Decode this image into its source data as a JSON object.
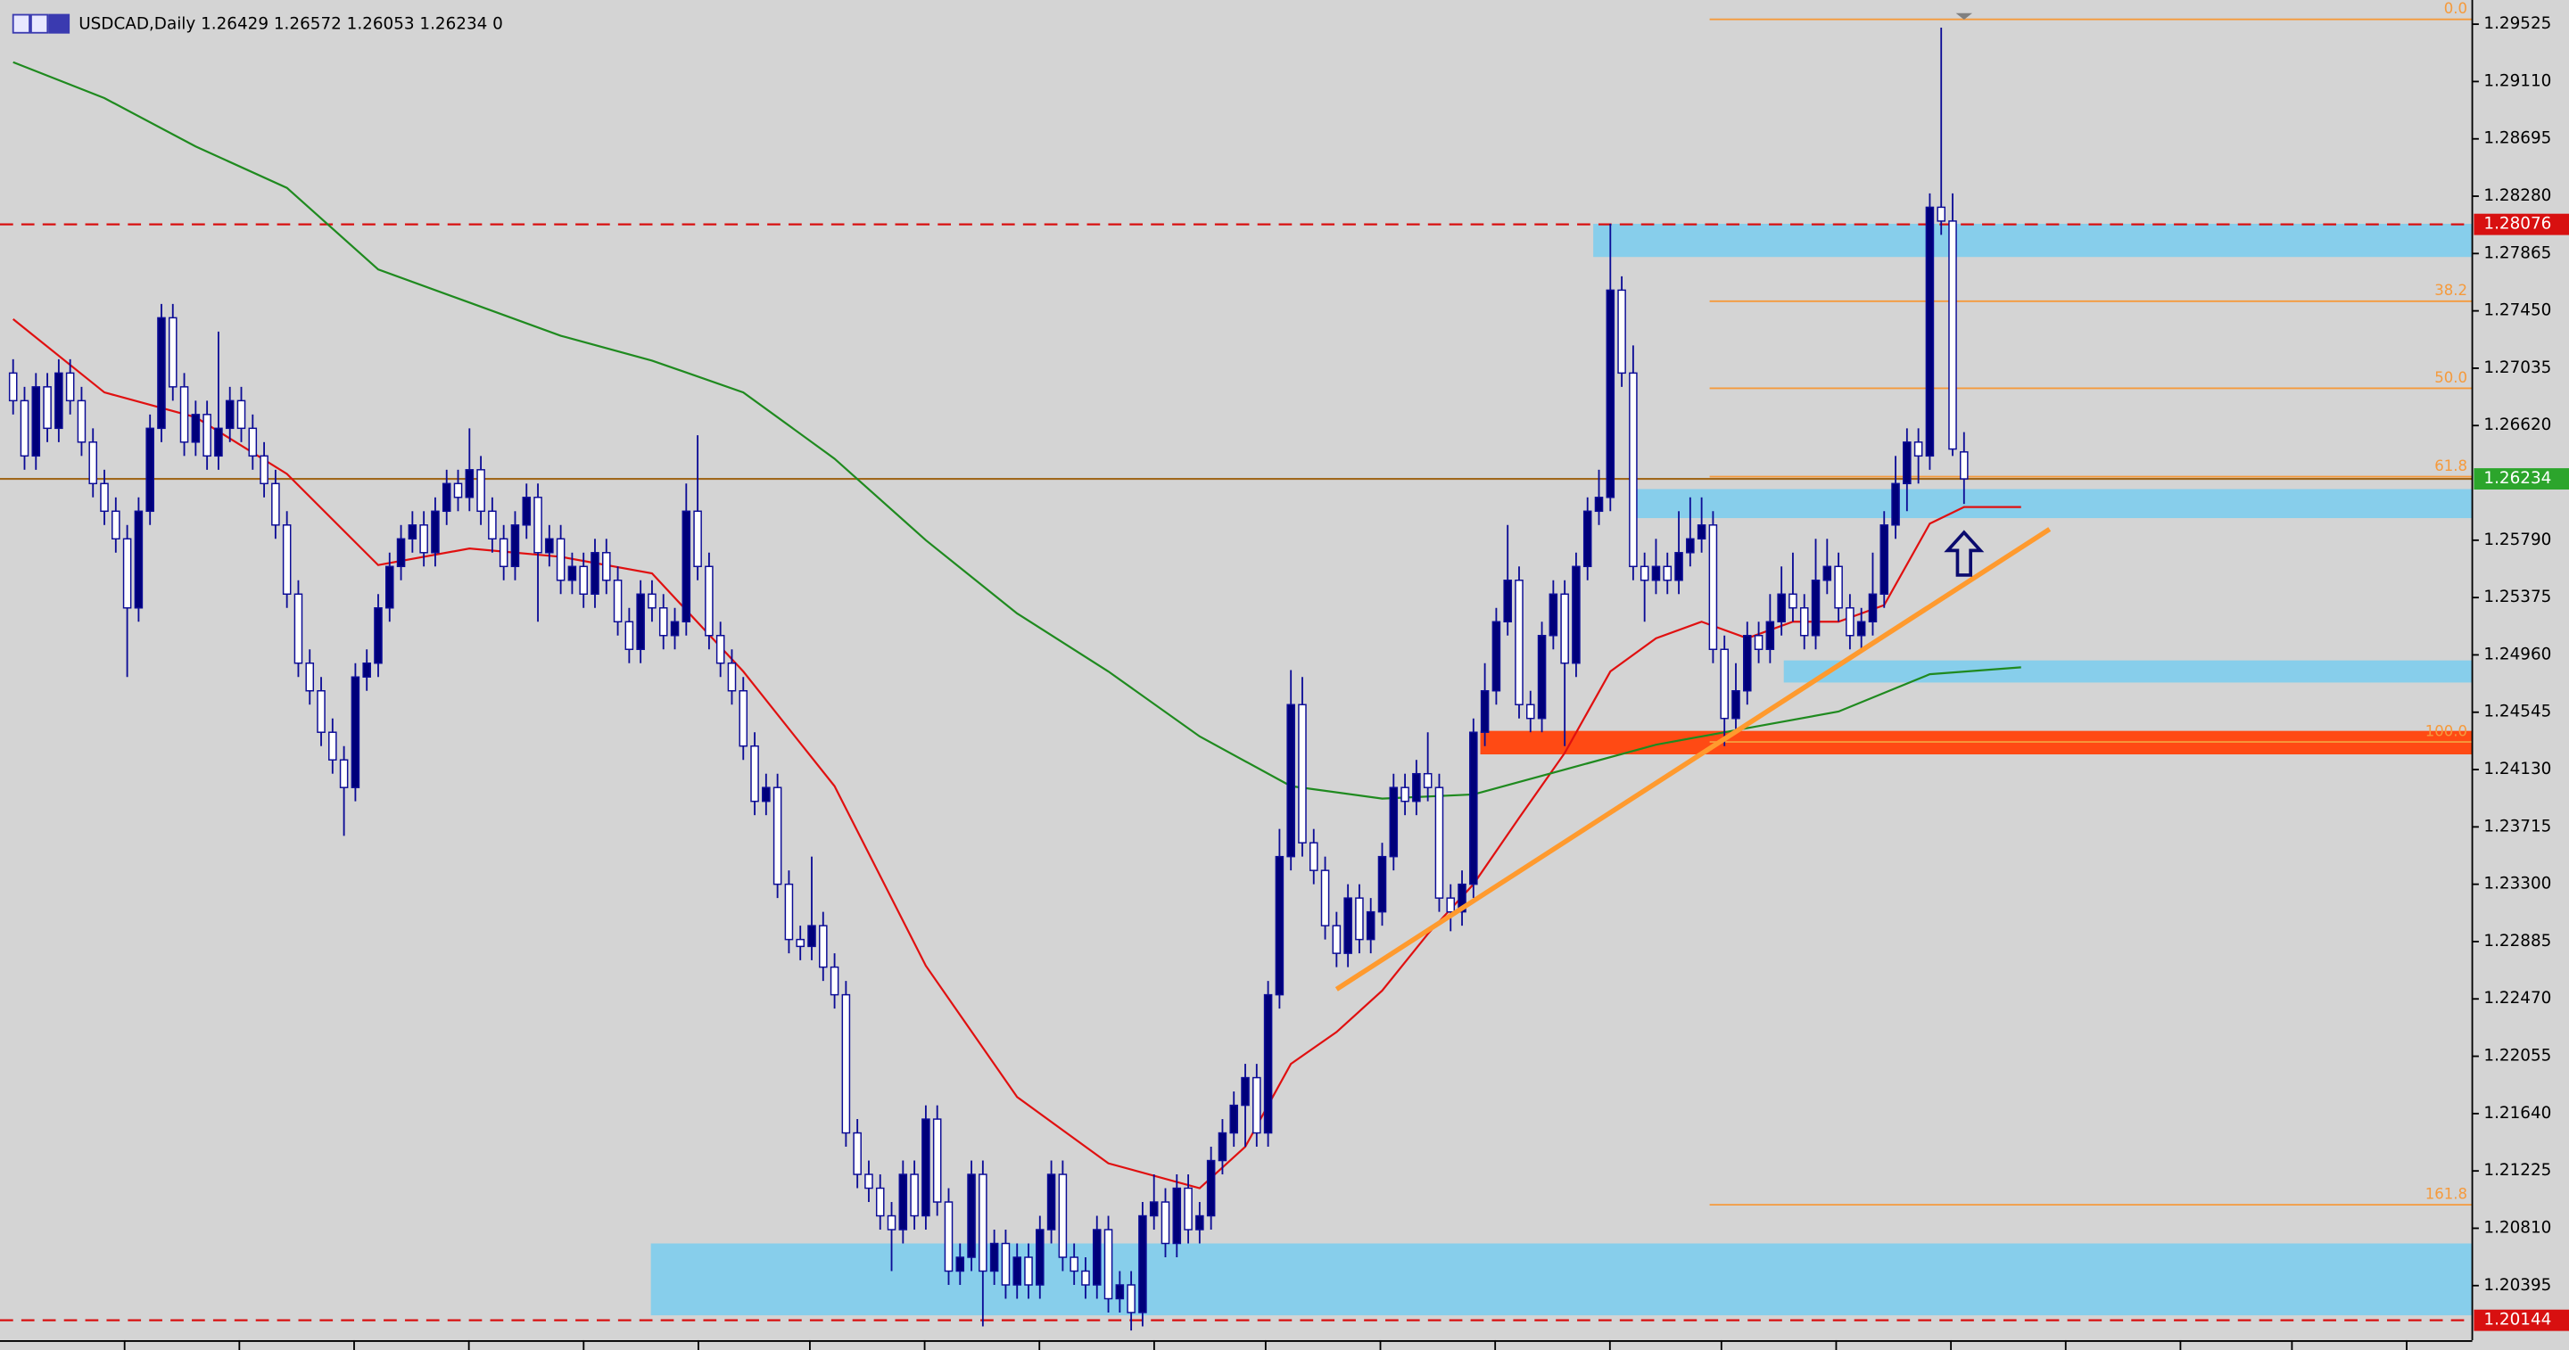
{
  "chart_data": {
    "type": "candlestick",
    "title": "USDCAD,Daily  1.26429 1.26572 1.26053 1.26234  0",
    "ylim": [
      1.2,
      1.297
    ],
    "yticks": [
      1.29525,
      {
        "value": 1.2911,
        "label": "1.29110"
      },
      1.28695,
      {
        "value": 1.2828,
        "label": "1.28280"
      },
      1.27865,
      {
        "value": 1.2745,
        "label": "1.27450"
      },
      1.27035,
      {
        "value": 1.2662,
        "label": "1.26620"
      },
      {
        "value": 1.2579,
        "label": "1.25790"
      },
      1.25375,
      {
        "value": 1.2496,
        "label": "1.24960"
      },
      1.24545,
      {
        "value": 1.2413,
        "label": "1.24130"
      },
      1.23715,
      {
        "value": 1.233,
        "label": "1.23300"
      },
      1.22885,
      {
        "value": 1.2247,
        "label": "1.22470"
      },
      1.22055,
      {
        "value": 1.2164,
        "label": "1.21640"
      },
      1.21225,
      {
        "value": 1.2081,
        "label": "1.20810"
      },
      1.20395
    ],
    "bull_color": "#00007a",
    "bear_color": "#ffffff",
    "wick_color": "#0c0c96",
    "ohlc": [
      [
        1.27,
        1.271,
        1.267,
        1.268
      ],
      [
        1.268,
        1.269,
        1.263,
        1.264
      ],
      [
        1.264,
        1.27,
        1.263,
        1.269
      ],
      [
        1.269,
        1.27,
        1.265,
        1.266
      ],
      [
        1.266,
        1.271,
        1.265,
        1.27
      ],
      [
        1.27,
        1.271,
        1.267,
        1.268
      ],
      [
        1.268,
        1.269,
        1.264,
        1.265
      ],
      [
        1.265,
        1.266,
        1.261,
        1.262
      ],
      [
        1.262,
        1.263,
        1.259,
        1.26
      ],
      [
        1.26,
        1.261,
        1.257,
        1.258
      ],
      [
        1.258,
        1.259,
        1.248,
        1.253
      ],
      [
        1.253,
        1.261,
        1.252,
        1.26
      ],
      [
        1.26,
        1.267,
        1.259,
        1.266
      ],
      [
        1.266,
        1.275,
        1.265,
        1.274
      ],
      [
        1.274,
        1.275,
        1.268,
        1.269
      ],
      [
        1.269,
        1.27,
        1.264,
        1.265
      ],
      [
        1.265,
        1.268,
        1.264,
        1.267
      ],
      [
        1.267,
        1.268,
        1.263,
        1.264
      ],
      [
        1.264,
        1.273,
        1.263,
        1.266
      ],
      [
        1.266,
        1.269,
        1.265,
        1.268
      ],
      [
        1.268,
        1.269,
        1.265,
        1.266
      ],
      [
        1.266,
        1.267,
        1.263,
        1.264
      ],
      [
        1.264,
        1.265,
        1.261,
        1.262
      ],
      [
        1.262,
        1.263,
        1.258,
        1.259
      ],
      [
        1.259,
        1.26,
        1.253,
        1.254
      ],
      [
        1.254,
        1.255,
        1.248,
        1.249
      ],
      [
        1.249,
        1.25,
        1.246,
        1.247
      ],
      [
        1.247,
        1.248,
        1.243,
        1.244
      ],
      [
        1.244,
        1.245,
        1.241,
        1.242
      ],
      [
        1.242,
        1.243,
        1.2365,
        1.24
      ],
      [
        1.24,
        1.249,
        1.239,
        1.248
      ],
      [
        1.248,
        1.25,
        1.247,
        1.249
      ],
      [
        1.249,
        1.254,
        1.248,
        1.253
      ],
      [
        1.253,
        1.257,
        1.252,
        1.256
      ],
      [
        1.256,
        1.259,
        1.255,
        1.258
      ],
      [
        1.258,
        1.26,
        1.257,
        1.259
      ],
      [
        1.259,
        1.26,
        1.256,
        1.257
      ],
      [
        1.257,
        1.261,
        1.256,
        1.26
      ],
      [
        1.26,
        1.263,
        1.259,
        1.262
      ],
      [
        1.262,
        1.263,
        1.26,
        1.261
      ],
      [
        1.261,
        1.266,
        1.26,
        1.263
      ],
      [
        1.263,
        1.264,
        1.259,
        1.26
      ],
      [
        1.26,
        1.261,
        1.257,
        1.258
      ],
      [
        1.258,
        1.259,
        1.255,
        1.256
      ],
      [
        1.256,
        1.26,
        1.255,
        1.259
      ],
      [
        1.259,
        1.262,
        1.258,
        1.261
      ],
      [
        1.261,
        1.262,
        1.252,
        1.257
      ],
      [
        1.257,
        1.259,
        1.256,
        1.258
      ],
      [
        1.258,
        1.259,
        1.254,
        1.255
      ],
      [
        1.255,
        1.257,
        1.254,
        1.256
      ],
      [
        1.256,
        1.257,
        1.253,
        1.254
      ],
      [
        1.254,
        1.258,
        1.253,
        1.257
      ],
      [
        1.257,
        1.258,
        1.254,
        1.255
      ],
      [
        1.255,
        1.256,
        1.251,
        1.252
      ],
      [
        1.252,
        1.253,
        1.249,
        1.25
      ],
      [
        1.25,
        1.255,
        1.249,
        1.254
      ],
      [
        1.254,
        1.255,
        1.252,
        1.253
      ],
      [
        1.253,
        1.254,
        1.25,
        1.251
      ],
      [
        1.251,
        1.253,
        1.25,
        1.252
      ],
      [
        1.252,
        1.262,
        1.251,
        1.26
      ],
      [
        1.26,
        1.2655,
        1.255,
        1.256
      ],
      [
        1.256,
        1.257,
        1.25,
        1.251
      ],
      [
        1.251,
        1.252,
        1.248,
        1.249
      ],
      [
        1.249,
        1.25,
        1.246,
        1.247
      ],
      [
        1.247,
        1.248,
        1.242,
        1.243
      ],
      [
        1.243,
        1.244,
        1.238,
        1.239
      ],
      [
        1.239,
        1.241,
        1.238,
        1.24
      ],
      [
        1.24,
        1.241,
        1.232,
        1.233
      ],
      [
        1.233,
        1.234,
        1.228,
        1.229
      ],
      [
        1.229,
        1.23,
        1.2275,
        1.2285
      ],
      [
        1.2285,
        1.235,
        1.2275,
        1.23
      ],
      [
        1.23,
        1.231,
        1.226,
        1.227
      ],
      [
        1.227,
        1.228,
        1.224,
        1.225
      ],
      [
        1.225,
        1.226,
        1.214,
        1.215
      ],
      [
        1.215,
        1.216,
        1.211,
        1.212
      ],
      [
        1.212,
        1.213,
        1.21,
        1.211
      ],
      [
        1.211,
        1.212,
        1.208,
        1.209
      ],
      [
        1.209,
        1.21,
        1.205,
        1.208
      ],
      [
        1.208,
        1.213,
        1.207,
        1.212
      ],
      [
        1.212,
        1.213,
        1.208,
        1.209
      ],
      [
        1.209,
        1.217,
        1.208,
        1.216
      ],
      [
        1.216,
        1.217,
        1.209,
        1.21
      ],
      [
        1.21,
        1.211,
        1.204,
        1.205
      ],
      [
        1.205,
        1.207,
        1.204,
        1.206
      ],
      [
        1.206,
        1.213,
        1.205,
        1.212
      ],
      [
        1.212,
        1.213,
        1.201,
        1.205
      ],
      [
        1.205,
        1.208,
        1.204,
        1.207
      ],
      [
        1.207,
        1.208,
        1.203,
        1.204
      ],
      [
        1.204,
        1.207,
        1.203,
        1.206
      ],
      [
        1.206,
        1.207,
        1.203,
        1.204
      ],
      [
        1.204,
        1.209,
        1.203,
        1.208
      ],
      [
        1.208,
        1.213,
        1.207,
        1.212
      ],
      [
        1.212,
        1.213,
        1.205,
        1.206
      ],
      [
        1.206,
        1.207,
        1.204,
        1.205
      ],
      [
        1.205,
        1.206,
        1.203,
        1.204
      ],
      [
        1.204,
        1.209,
        1.203,
        1.208
      ],
      [
        1.208,
        1.209,
        1.202,
        1.203
      ],
      [
        1.203,
        1.205,
        1.202,
        1.204
      ],
      [
        1.204,
        1.205,
        1.2007,
        1.202
      ],
      [
        1.202,
        1.21,
        1.201,
        1.209
      ],
      [
        1.209,
        1.212,
        1.208,
        1.21
      ],
      [
        1.21,
        1.211,
        1.206,
        1.207
      ],
      [
        1.207,
        1.212,
        1.206,
        1.211
      ],
      [
        1.211,
        1.212,
        1.207,
        1.208
      ],
      [
        1.208,
        1.21,
        1.207,
        1.209
      ],
      [
        1.209,
        1.214,
        1.208,
        1.213
      ],
      [
        1.213,
        1.216,
        1.212,
        1.215
      ],
      [
        1.215,
        1.218,
        1.214,
        1.217
      ],
      [
        1.217,
        1.22,
        1.214,
        1.219
      ],
      [
        1.219,
        1.22,
        1.214,
        1.215
      ],
      [
        1.215,
        1.226,
        1.214,
        1.225
      ],
      [
        1.225,
        1.237,
        1.224,
        1.235
      ],
      [
        1.235,
        1.2485,
        1.234,
        1.246
      ],
      [
        1.246,
        1.248,
        1.235,
        1.236
      ],
      [
        1.236,
        1.237,
        1.233,
        1.234
      ],
      [
        1.234,
        1.235,
        1.229,
        1.23
      ],
      [
        1.23,
        1.231,
        1.227,
        1.228
      ],
      [
        1.228,
        1.233,
        1.227,
        1.232
      ],
      [
        1.232,
        1.233,
        1.228,
        1.229
      ],
      [
        1.229,
        1.232,
        1.228,
        1.231
      ],
      [
        1.231,
        1.236,
        1.23,
        1.235
      ],
      [
        1.235,
        1.241,
        1.234,
        1.24
      ],
      [
        1.24,
        1.241,
        1.238,
        1.239
      ],
      [
        1.239,
        1.242,
        1.238,
        1.241
      ],
      [
        1.241,
        1.244,
        1.239,
        1.24
      ],
      [
        1.24,
        1.241,
        1.231,
        1.232
      ],
      [
        1.232,
        1.233,
        1.2296,
        1.231
      ],
      [
        1.231,
        1.234,
        1.23,
        1.233
      ],
      [
        1.233,
        1.245,
        1.232,
        1.244
      ],
      [
        1.244,
        1.249,
        1.243,
        1.247
      ],
      [
        1.247,
        1.253,
        1.246,
        1.252
      ],
      [
        1.252,
        1.259,
        1.251,
        1.255
      ],
      [
        1.255,
        1.256,
        1.245,
        1.246
      ],
      [
        1.246,
        1.247,
        1.244,
        1.245
      ],
      [
        1.245,
        1.252,
        1.244,
        1.251
      ],
      [
        1.251,
        1.255,
        1.25,
        1.254
      ],
      [
        1.254,
        1.255,
        1.243,
        1.249
      ],
      [
        1.249,
        1.257,
        1.248,
        1.256
      ],
      [
        1.256,
        1.261,
        1.255,
        1.26
      ],
      [
        1.26,
        1.263,
        1.259,
        1.261
      ],
      [
        1.261,
        1.2808,
        1.26,
        1.276
      ],
      [
        1.276,
        1.277,
        1.269,
        1.27
      ],
      [
        1.27,
        1.272,
        1.255,
        1.256
      ],
      [
        1.256,
        1.257,
        1.252,
        1.255
      ],
      [
        1.255,
        1.258,
        1.254,
        1.256
      ],
      [
        1.256,
        1.257,
        1.254,
        1.255
      ],
      [
        1.255,
        1.26,
        1.254,
        1.257
      ],
      [
        1.257,
        1.261,
        1.256,
        1.258
      ],
      [
        1.258,
        1.261,
        1.257,
        1.259
      ],
      [
        1.259,
        1.26,
        1.249,
        1.25
      ],
      [
        1.25,
        1.251,
        1.243,
        1.245
      ],
      [
        1.245,
        1.249,
        1.244,
        1.247
      ],
      [
        1.247,
        1.252,
        1.246,
        1.251
      ],
      [
        1.251,
        1.252,
        1.249,
        1.25
      ],
      [
        1.25,
        1.254,
        1.249,
        1.252
      ],
      [
        1.252,
        1.256,
        1.251,
        1.254
      ],
      [
        1.254,
        1.257,
        1.252,
        1.253
      ],
      [
        1.253,
        1.254,
        1.25,
        1.251
      ],
      [
        1.251,
        1.258,
        1.25,
        1.255
      ],
      [
        1.255,
        1.258,
        1.254,
        1.256
      ],
      [
        1.256,
        1.257,
        1.252,
        1.253
      ],
      [
        1.253,
        1.254,
        1.25,
        1.251
      ],
      [
        1.251,
        1.253,
        1.25,
        1.252
      ],
      [
        1.252,
        1.257,
        1.251,
        1.254
      ],
      [
        1.254,
        1.26,
        1.253,
        1.259
      ],
      [
        1.259,
        1.264,
        1.258,
        1.262
      ],
      [
        1.262,
        1.266,
        1.26,
        1.265
      ],
      [
        1.265,
        1.266,
        1.262,
        1.264
      ],
      [
        1.264,
        1.283,
        1.263,
        1.282
      ],
      [
        1.282,
        1.295,
        1.28,
        1.281
      ],
      [
        1.281,
        1.283,
        1.264,
        1.2645
      ],
      [
        1.26429,
        1.26572,
        1.26053,
        1.26234
      ]
    ],
    "moving_averages": [
      {
        "color": "#e01010",
        "x": [
          0,
          8,
          16,
          24,
          32,
          40,
          48,
          56,
          64,
          72,
          80,
          88,
          96,
          104,
          108,
          112,
          116,
          120,
          124,
          128,
          132,
          136,
          140,
          144,
          148,
          152,
          156,
          160,
          164,
          168,
          171,
          176
        ],
        "values": [
          1.2739,
          1.2686,
          1.2668,
          1.2627,
          1.2561,
          1.2573,
          1.2567,
          1.2555,
          1.2484,
          1.2401,
          1.2271,
          1.2176,
          1.2128,
          1.211,
          1.214,
          1.22,
          1.2223,
          1.2253,
          1.2294,
          1.233,
          1.2378,
          1.2425,
          1.2484,
          1.2508,
          1.252,
          1.2508,
          1.252,
          1.252,
          1.2532,
          1.2591,
          1.2603,
          1.2603
        ]
      },
      {
        "color": "#1f8a1f",
        "x": [
          0,
          8,
          16,
          24,
          32,
          40,
          48,
          56,
          64,
          72,
          80,
          88,
          96,
          104,
          112,
          120,
          128,
          136,
          144,
          152,
          160,
          168,
          176
        ],
        "values": [
          1.2925,
          1.2899,
          1.2864,
          1.2834,
          1.2775,
          1.2751,
          1.2727,
          1.2709,
          1.2686,
          1.2638,
          1.2579,
          1.2526,
          1.2484,
          1.2437,
          1.2401,
          1.2392,
          1.2395,
          1.2413,
          1.2431,
          1.2443,
          1.2455,
          1.2482,
          1.2487
        ]
      }
    ],
    "zones": [
      {
        "x_from": 138.5,
        "top": 1.2808,
        "bottom": 1.2784,
        "color": "#87ceeb"
      },
      {
        "x_from": 142.1,
        "top": 1.2616,
        "bottom": 1.2595,
        "color": "#87ceeb"
      },
      {
        "x_from": 155.2,
        "top": 1.2492,
        "bottom": 1.2476,
        "color": "#87ceeb"
      },
      {
        "x_from": 55.9,
        "top": 1.207,
        "bottom": 1.2018,
        "color": "#87ceeb"
      },
      {
        "x_from": 128.6,
        "top": 1.2441,
        "bottom": 1.2424,
        "color": "#ff4a14"
      }
    ],
    "fib": {
      "color": "#f59a3c",
      "x_from": 148.7,
      "levels": [
        {
          "label": "0.0",
          "value": 1.2956
        },
        {
          "label": "38.2",
          "value": 1.2752
        },
        {
          "label": "50.0",
          "value": 1.2689
        },
        {
          "label": "61.8",
          "value": 1.2625
        },
        {
          "label": "100.0",
          "value": 1.2433
        },
        {
          "label": "161.8",
          "value": 1.2098
        }
      ]
    },
    "trendline": {
      "color": "#ff9a2e",
      "x": [
        116,
        178.5
      ],
      "y": [
        1.2254,
        1.2587
      ]
    },
    "hlines": [
      {
        "value": 1.28076,
        "color": "#d81010",
        "dashed": true
      },
      {
        "value": 1.26234,
        "color": "#a0681c",
        "dashed": false,
        "label_color": "#2ca52c"
      },
      {
        "value": 1.20144,
        "color": "#d81010",
        "dashed": true
      }
    ]
  }
}
